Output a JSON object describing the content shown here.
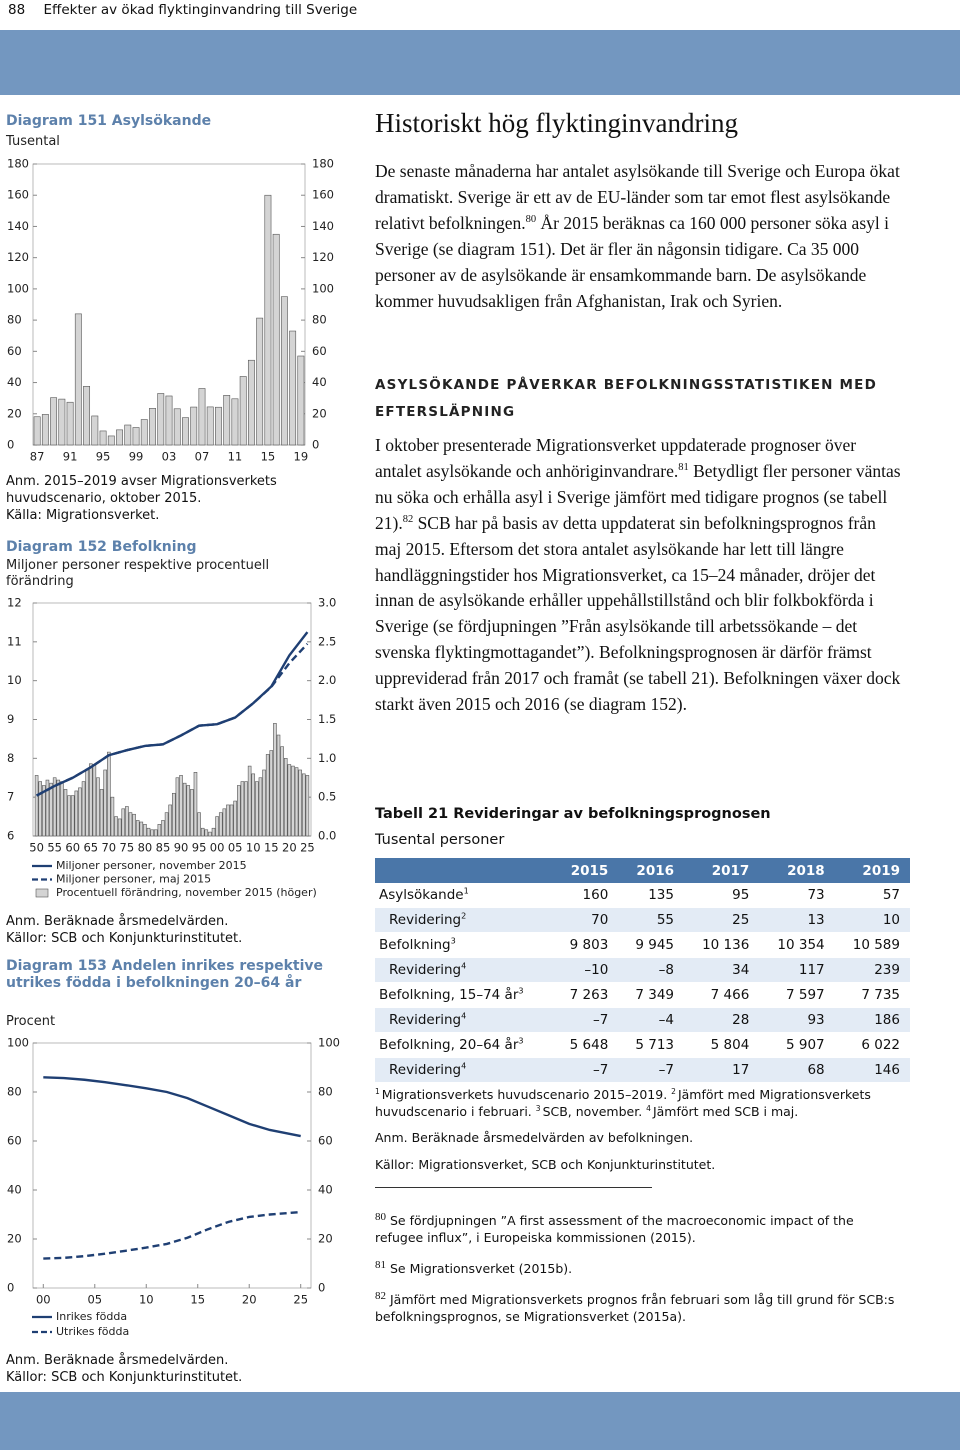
{
  "header": {
    "page_number": "88",
    "title": "Effekter av ökad flyktinginvandring till Sverige"
  },
  "chart_data": [
    {
      "type": "bar",
      "title": "Diagram 151 Asylsökande",
      "subtitle": "Tusental",
      "categories": [
        "87",
        null,
        null,
        null,
        "91",
        null,
        null,
        null,
        "95",
        null,
        null,
        null,
        "99",
        null,
        null,
        null,
        "03",
        null,
        null,
        null,
        "07",
        null,
        null,
        null,
        "11",
        null,
        null,
        null,
        "15",
        null,
        null,
        null,
        "19"
      ],
      "values": [
        18.1,
        19.6,
        30.3,
        29.4,
        27.4,
        84.0,
        37.6,
        18.6,
        9.0,
        5.8,
        9.7,
        12.8,
        11.2,
        16.3,
        23.5,
        33.0,
        31.4,
        23.2,
        17.5,
        24.3,
        36.2,
        24.4,
        24.2,
        31.8,
        29.6,
        43.9,
        54.3,
        81.3,
        160,
        135,
        95,
        73,
        57
      ],
      "color": "#d4d4d4",
      "ylim": [
        0,
        180
      ],
      "yticks": [
        0,
        20,
        40,
        60,
        80,
        100,
        120,
        140,
        160,
        180
      ],
      "y2lim": [
        0,
        180
      ],
      "y2ticks": [
        0,
        20,
        40,
        60,
        80,
        100,
        120,
        140,
        160,
        180
      ],
      "grid": false,
      "notes": [
        "Anm. 2015–2019 avser Migrationsverkets huvudscenario, oktober 2015.",
        "Källa: Migrationsverket."
      ]
    },
    {
      "type": "combo",
      "title": "Diagram 152 Befolkning",
      "subtitle": "Miljoner personer respektive procentuell förändring",
      "xlim": [
        1949,
        2026
      ],
      "xticks": [
        {
          "value": 1950,
          "label": "50"
        },
        {
          "value": 1955,
          "label": "55"
        },
        {
          "value": 1960,
          "label": "60"
        },
        {
          "value": 1965,
          "label": "65"
        },
        {
          "value": 1970,
          "label": "70"
        },
        {
          "value": 1975,
          "label": "75"
        },
        {
          "value": 1980,
          "label": "80"
        },
        {
          "value": 1985,
          "label": "85"
        },
        {
          "value": 1990,
          "label": "90"
        },
        {
          "value": 1995,
          "label": "95"
        },
        {
          "value": 2000,
          "label": "00"
        },
        {
          "value": 2005,
          "label": "05"
        },
        {
          "value": 2010,
          "label": "10"
        },
        {
          "value": 2015,
          "label": "15"
        },
        {
          "value": 2020,
          "label": "20"
        },
        {
          "value": 2025,
          "label": "25"
        }
      ],
      "ylim": [
        6,
        12
      ],
      "yticks": [
        6,
        7,
        8,
        9,
        10,
        11,
        12
      ],
      "y2lim": [
        0,
        3
      ],
      "y2ticks": [
        {
          "value": 0,
          "label": "0.0"
        },
        0.5,
        {
          "value": 1,
          "label": "1.0"
        },
        1.5,
        {
          "value": 2,
          "label": "2.0"
        },
        2.5,
        {
          "value": 3,
          "label": "3.0"
        }
      ],
      "grid": false,
      "series": [
        {
          "name": "Miljoner personer, november 2015",
          "type": "line",
          "color": "#1f3f73",
          "dashed": false,
          "x": [
            1950,
            1955,
            1960,
            1965,
            1970,
            1975,
            1980,
            1985,
            1990,
            1995,
            2000,
            2005,
            2010,
            2015,
            2020,
            2025
          ],
          "values": [
            7.04,
            7.29,
            7.5,
            7.77,
            8.08,
            8.21,
            8.32,
            8.36,
            8.59,
            8.84,
            8.88,
            9.05,
            9.42,
            9.85,
            10.65,
            11.25
          ]
        },
        {
          "name": "Miljoner personer, maj 2015",
          "type": "line",
          "color": "#1f3f73",
          "dashed": true,
          "x": [
            1950,
            1955,
            1960,
            1965,
            1970,
            1975,
            1980,
            1985,
            1990,
            1995,
            2000,
            2005,
            2010,
            2015,
            2020,
            2025
          ],
          "values": [
            7.04,
            7.29,
            7.5,
            7.77,
            8.08,
            8.21,
            8.32,
            8.36,
            8.59,
            8.84,
            8.88,
            9.05,
            9.42,
            9.84,
            10.45,
            10.95
          ]
        },
        {
          "name": "Procentuell förändring, november 2015 (höger)",
          "type": "bar",
          "axis": "y2",
          "color": "#d4d4d4",
          "x": [
            1950,
            1951,
            1952,
            1953,
            1954,
            1955,
            1956,
            1957,
            1958,
            1959,
            1960,
            1961,
            1962,
            1963,
            1964,
            1965,
            1966,
            1967,
            1968,
            1969,
            1970,
            1971,
            1972,
            1973,
            1974,
            1975,
            1976,
            1977,
            1978,
            1979,
            1980,
            1981,
            1982,
            1983,
            1984,
            1985,
            1986,
            1987,
            1988,
            1989,
            1990,
            1991,
            1992,
            1993,
            1994,
            1995,
            1996,
            1997,
            1998,
            1999,
            2000,
            2001,
            2002,
            2003,
            2004,
            2005,
            2006,
            2007,
            2008,
            2009,
            2010,
            2011,
            2012,
            2013,
            2014,
            2015,
            2016,
            2017,
            2018,
            2019,
            2020,
            2021,
            2022,
            2023,
            2024,
            2025
          ],
          "values": [
            0.78,
            0.7,
            0.65,
            0.72,
            0.68,
            0.75,
            0.72,
            0.7,
            0.6,
            0.52,
            0.52,
            0.58,
            0.62,
            0.7,
            0.85,
            0.93,
            0.92,
            0.75,
            0.6,
            0.85,
            1.08,
            0.5,
            0.25,
            0.22,
            0.35,
            0.38,
            0.3,
            0.28,
            0.2,
            0.18,
            0.15,
            0.1,
            0.08,
            0.08,
            0.15,
            0.2,
            0.3,
            0.4,
            0.55,
            0.75,
            0.78,
            0.68,
            0.65,
            0.6,
            0.82,
            0.3,
            0.1,
            0.08,
            0.05,
            0.1,
            0.25,
            0.3,
            0.35,
            0.4,
            0.4,
            0.45,
            0.65,
            0.7,
            0.7,
            0.9,
            0.8,
            0.7,
            0.75,
            0.85,
            1.05,
            1.1,
            1.45,
            1.3,
            1.15,
            1.0,
            0.92,
            0.9,
            0.88,
            0.85,
            0.8,
            0.78
          ]
        }
      ],
      "notes": [
        "Anm. Beräknade årsmedelvärden.",
        "Källor: SCB och Konjunkturinstitutet."
      ]
    },
    {
      "type": "line",
      "title": "Diagram 153 Andelen inrikes respektive utrikes födda i befolkningen 20–64 år",
      "subtitle": "Procent",
      "xlim": [
        1999,
        2026
      ],
      "xticks": [
        {
          "value": 2000,
          "label": "00"
        },
        {
          "value": 2005,
          "label": "05"
        },
        {
          "value": 2010,
          "label": "10"
        },
        {
          "value": 2015,
          "label": "15"
        },
        {
          "value": 2020,
          "label": "20"
        },
        {
          "value": 2025,
          "label": "25"
        }
      ],
      "ylim": [
        0,
        100
      ],
      "yticks": [
        0,
        20,
        40,
        60,
        80,
        100
      ],
      "y2lim": [
        0,
        100
      ],
      "y2ticks": [
        0,
        20,
        40,
        60,
        80,
        100
      ],
      "grid": false,
      "series": [
        {
          "name": "Inrikes födda",
          "color": "#1f3f73",
          "dashed": false,
          "x": [
            2000,
            2002,
            2004,
            2006,
            2008,
            2010,
            2012,
            2014,
            2016,
            2018,
            2020,
            2022,
            2025
          ],
          "values": [
            86,
            85.7,
            85,
            84,
            82.8,
            81.5,
            80,
            77.5,
            74,
            70.5,
            67,
            64.5,
            62
          ]
        },
        {
          "name": "Utrikes födda",
          "color": "#1f3f73",
          "dashed": true,
          "x": [
            2000,
            2002,
            2004,
            2006,
            2008,
            2010,
            2012,
            2014,
            2016,
            2018,
            2020,
            2022,
            2025
          ],
          "values": [
            12,
            12.3,
            13,
            14,
            15.2,
            16.5,
            18,
            20.5,
            24,
            27,
            29,
            30,
            31
          ]
        }
      ],
      "notes": [
        "Anm. Beräknade årsmedelvärden.",
        "Källor: SCB och Konjunkturinstitutet."
      ]
    }
  ],
  "article": {
    "heading": "Historiskt hög flyktinginvandring",
    "paragraph_1": [
      {
        "text": "De senaste månaderna har antalet asylsökande till Sverige och Europa ökat dramatiskt. Sverige är ett av de EU-länder som tar emot flest asylsökande relativt befolkningen.",
        "sup": "80"
      },
      {
        "text": " År 2015 beräknas ca 160 000 personer söka asyl i Sverige (se diagram 151). Det är fler än någonsin tidigare. Ca 35 000 personer av de asylsökande är ensamkommande barn. De asylsökande kommer huvudsakligen från Afghanistan, Irak och Syrien."
      }
    ],
    "subheading": "ASYLSÖKANDE PÅVERKAR BEFOLKNINGSSTATISTIKEN MED EFTERSLÄPNING",
    "paragraph_2": [
      {
        "text": "I oktober presenterade Migrationsverket uppdaterade prognoser över antalet asylsökande och anhöriginvandrare.",
        "sup": "81"
      },
      {
        "text": " Betydligt fler personer väntas nu söka och erhålla asyl i Sverige jämfört med tidigare prognos (se tabell 21).",
        "sup": "82"
      },
      {
        "text": " SCB har på basis av detta uppdaterat sin befolkningsprognos från maj 2015. Eftersom det stora antalet asylsökande har lett till längre handläggningstider hos Migrationsverket, ca 15–24 månader, dröjer det innan de asylsökande erhåller uppehållstillstånd och blir folkbokförda i Sverige (se fördjupningen ”Från asylsökande till arbetssökande – det svenska flyktingmottagandet”). Befolkningsprognosen är därför främst uppreviderad från 2017 och framåt (se tabell 21). Befolkningen växer dock starkt även 2015 och 2016 (se diagram 152)."
      }
    ]
  },
  "table": {
    "title": "Tabell 21 Revideringar av befolkningsprognosen",
    "subtitle": "Tusental personer",
    "columns": [
      "2015",
      "2016",
      "2017",
      "2018",
      "2019"
    ],
    "rows": [
      {
        "label": "Asylsökande",
        "sup": "1",
        "indent": false,
        "values": [
          "160",
          "135",
          "95",
          "73",
          "57"
        ]
      },
      {
        "label": "Revidering",
        "sup": "2",
        "indent": true,
        "values": [
          "70",
          "55",
          "25",
          "13",
          "10"
        ]
      },
      {
        "label": "Befolkning",
        "sup": "3",
        "indent": false,
        "values": [
          "9 803",
          "9 945",
          "10 136",
          "10 354",
          "10 589"
        ]
      },
      {
        "label": "Revidering",
        "sup": "4",
        "indent": true,
        "values": [
          "–10",
          "–8",
          "34",
          "117",
          "239"
        ]
      },
      {
        "label": "Befolkning, 15–74 år",
        "sup": "3",
        "indent": false,
        "values": [
          "7 263",
          "7 349",
          "7 466",
          "7 597",
          "7 735"
        ]
      },
      {
        "label": "Revidering",
        "sup": "4",
        "indent": true,
        "values": [
          "–7",
          "–4",
          "28",
          "93",
          "186"
        ]
      },
      {
        "label": "Befolkning, 20–64 år",
        "sup": "3",
        "indent": false,
        "values": [
          "5 648",
          "5 713",
          "5 804",
          "5 907",
          "6 022"
        ]
      },
      {
        "label": "Revidering",
        "sup": "4",
        "indent": true,
        "values": [
          "–7",
          "–7",
          "17",
          "68",
          "146"
        ]
      }
    ],
    "notes": [
      {
        "sup": "1",
        "text": "Migrationsverkets huvudscenario 2015–2019."
      },
      {
        "sup": "2",
        "text": "Jämfört med Migrationsverkets huvudscenario i februari."
      },
      {
        "sup": "3",
        "text": "SCB, november."
      },
      {
        "sup": "4",
        "text": "Jämfört med SCB i maj."
      }
    ],
    "remark": "Anm. Beräknade årsmedelvärden av befolkningen.",
    "source": "Källor: Migrationsverket, SCB och Konjunkturinstitutet."
  },
  "footnotes": [
    {
      "number": "80",
      "text": "Se fördjupningen ”A first assessment of the macroeconomic impact of the refugee influx”, i Europeiska kommissionen (2015)."
    },
    {
      "number": "81",
      "text": "Se Migrationsverket (2015b)."
    },
    {
      "number": "82",
      "text": "Jämfört med Migrationsverkets prognos från februari som låg till grund för SCB:s befolkningsprognos, se Migrationsverket (2015a)."
    }
  ]
}
